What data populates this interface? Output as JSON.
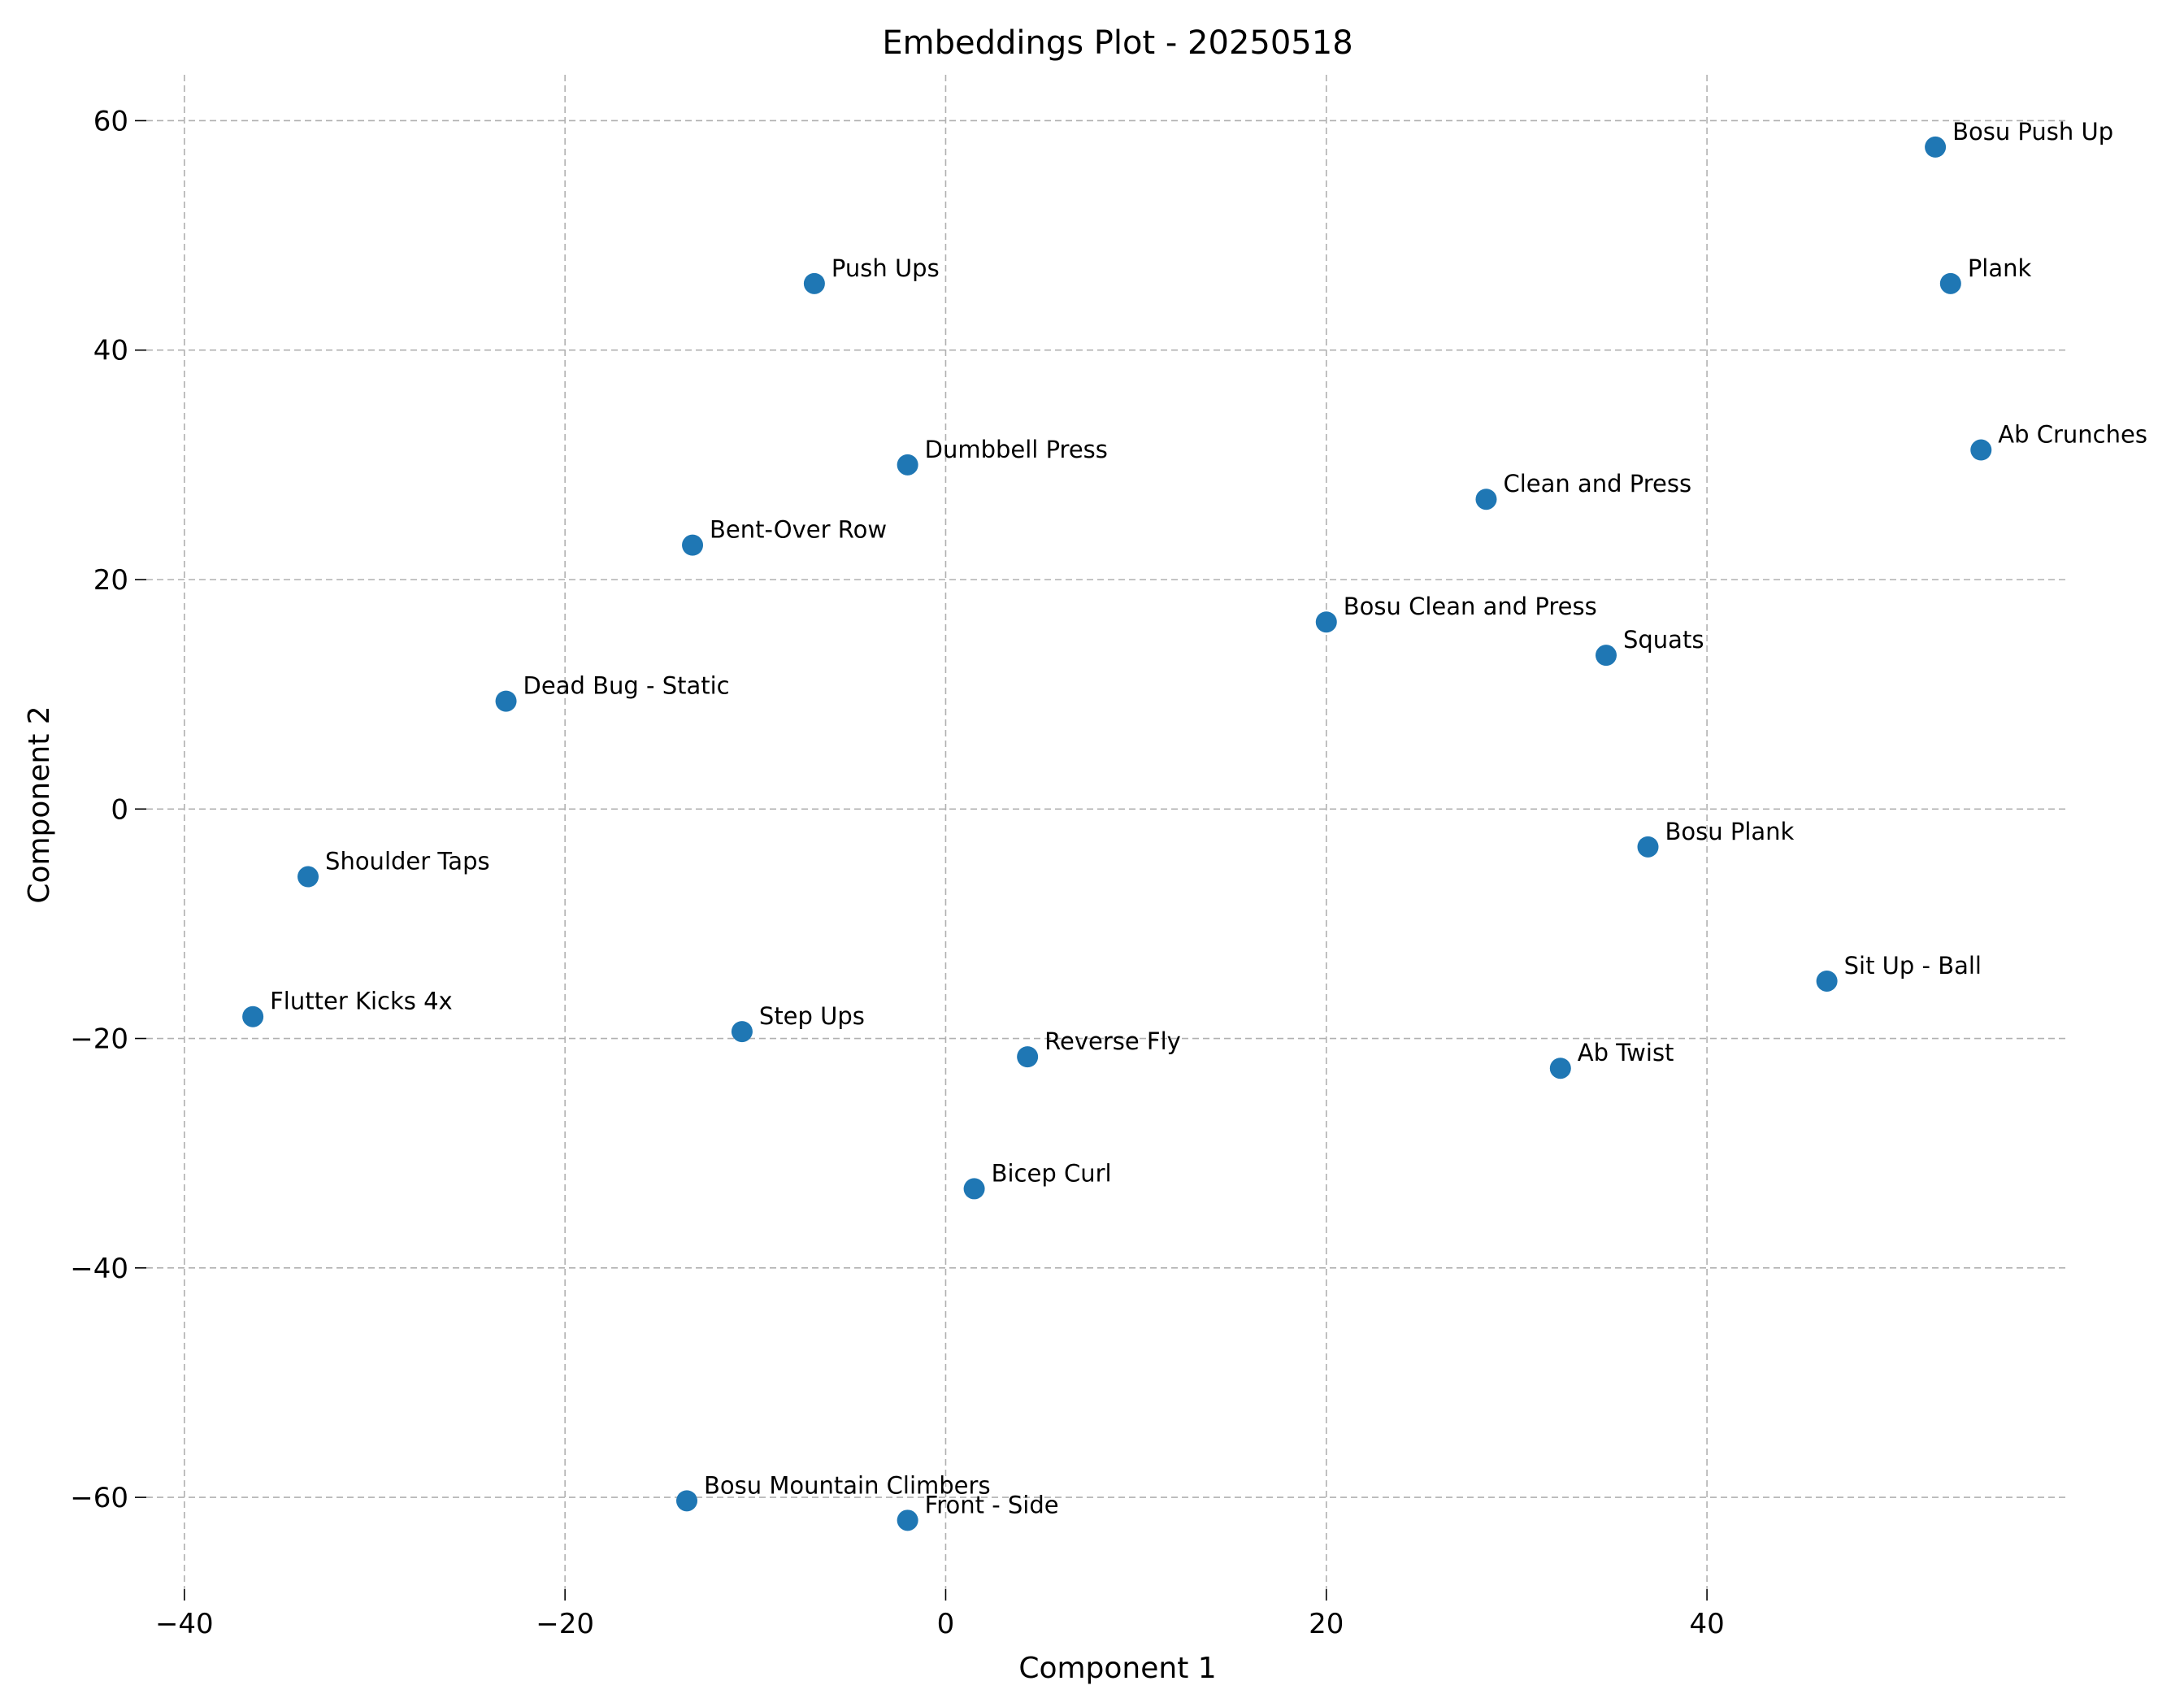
{
  "chart_data": {
    "type": "scatter",
    "title": "Embeddings Plot - 20250518",
    "xlabel": "Component 1",
    "ylabel": "Component 2",
    "xlim": [
      -42,
      59
    ],
    "ylim": [
      -68,
      64
    ],
    "xticks": [
      -40,
      -20,
      0,
      20,
      40
    ],
    "yticks": [
      -60,
      -40,
      -20,
      0,
      20,
      40,
      60
    ],
    "xtick_labels": [
      "−40",
      "−20",
      "0",
      "20",
      "40"
    ],
    "ytick_labels": [
      "−60",
      "−40",
      "−20",
      "0",
      "20",
      "40",
      "60"
    ],
    "grid": true,
    "color": "#1f77b4",
    "points": [
      {
        "label": "Bosu Push Up",
        "x": 52.0,
        "y": 57.7
      },
      {
        "label": "Plank",
        "x": 52.8,
        "y": 45.8
      },
      {
        "label": "Ab Crunches",
        "x": 54.4,
        "y": 31.3
      },
      {
        "label": "Push Ups",
        "x": -6.9,
        "y": 45.8
      },
      {
        "label": "Dumbbell Press",
        "x": -2.0,
        "y": 30.0
      },
      {
        "label": "Clean and Press",
        "x": 28.4,
        "y": 27.0
      },
      {
        "label": "Bent-Over Row",
        "x": -13.3,
        "y": 23.0
      },
      {
        "label": "Bosu Clean and Press",
        "x": 20.0,
        "y": 16.3
      },
      {
        "label": "Squats",
        "x": 34.7,
        "y": 13.4
      },
      {
        "label": "Dead Bug - Static",
        "x": -23.1,
        "y": 9.4
      },
      {
        "label": "Bosu Plank",
        "x": 36.9,
        "y": -3.3
      },
      {
        "label": "Shoulder Taps",
        "x": -33.5,
        "y": -5.9
      },
      {
        "label": "Sit Up - Ball",
        "x": 46.3,
        "y": -15.0
      },
      {
        "label": "Flutter Kicks 4x",
        "x": -36.4,
        "y": -18.1
      },
      {
        "label": "Step Ups",
        "x": -10.7,
        "y": -19.4
      },
      {
        "label": "Reverse Fly",
        "x": 4.3,
        "y": -21.6
      },
      {
        "label": "Ab Twist",
        "x": 32.3,
        "y": -22.6
      },
      {
        "label": "Bicep Curl",
        "x": 1.5,
        "y": -33.1
      },
      {
        "label": "Bosu Mountain Climbers",
        "x": -13.6,
        "y": -60.3
      },
      {
        "label": "Front - Side",
        "x": -2.0,
        "y": -62.0
      }
    ]
  }
}
